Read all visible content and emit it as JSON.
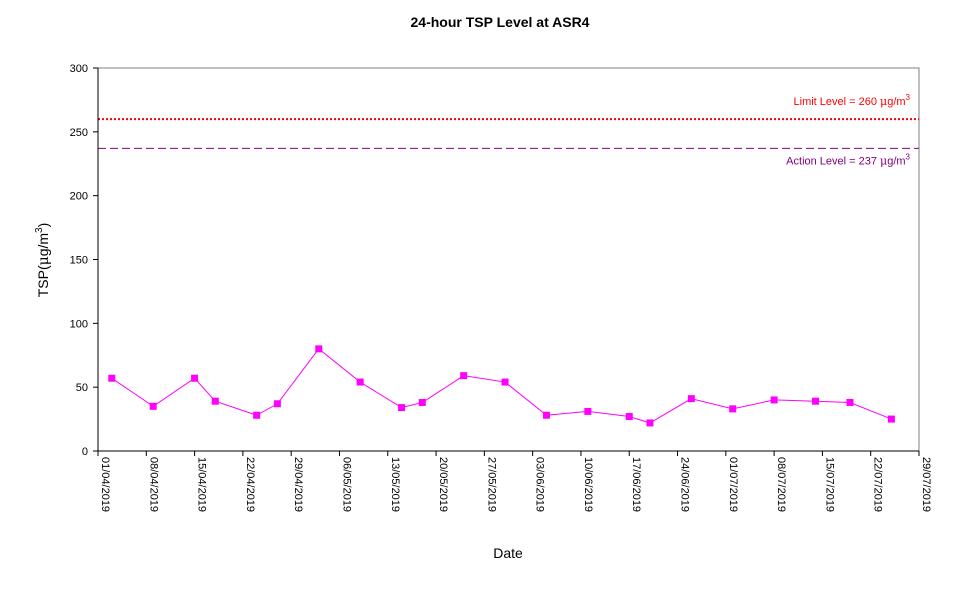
{
  "chart_data": {
    "type": "line",
    "title": "24-hour TSP Level at ASR4",
    "xlabel": "Date",
    "ylabel": "TSP(μg/m3)",
    "ylabel_parts": {
      "base": "TSP(",
      "mu": "μ",
      "unit": "g/m",
      "sup": "3",
      "close": ")"
    },
    "ylim": [
      0,
      300
    ],
    "yticks": [
      0,
      50,
      100,
      150,
      200,
      250,
      300
    ],
    "xlim": [
      "2019-04-01",
      "2019-07-29"
    ],
    "xticks": [
      "01/04/2019",
      "08/04/2019",
      "15/04/2019",
      "22/04/2019",
      "29/04/2019",
      "06/05/2019",
      "13/05/2019",
      "20/05/2019",
      "27/05/2019",
      "03/06/2019",
      "10/06/2019",
      "17/06/2019",
      "24/06/2019",
      "01/07/2019",
      "08/07/2019",
      "15/07/2019",
      "22/07/2019",
      "29/07/2019"
    ],
    "grid": false,
    "series": [
      {
        "color": "#ff00ff",
        "marker": "square",
        "x": [
          "2019-04-03",
          "2019-04-09",
          "2019-04-15",
          "2019-04-18",
          "2019-04-24",
          "2019-04-27",
          "2019-05-03",
          "2019-05-09",
          "2019-05-15",
          "2019-05-18",
          "2019-05-24",
          "2019-05-30",
          "2019-06-05",
          "2019-06-11",
          "2019-06-17",
          "2019-06-20",
          "2019-06-26",
          "2019-07-02",
          "2019-07-08",
          "2019-07-14",
          "2019-07-19",
          "2019-07-25"
        ],
        "values": [
          57,
          35,
          57,
          39,
          28,
          37,
          80,
          54,
          34,
          38,
          59,
          54,
          28,
          31,
          27,
          22,
          41,
          33,
          40,
          39,
          38,
          25
        ]
      }
    ],
    "reference_lines": [
      {
        "label": "Limit Level  = 260 μg/m3",
        "label_parts": {
          "text": "Limit Level  = 260 ",
          "mu": "μ",
          "unit": "g/m",
          "sup": "3"
        },
        "value": 260,
        "color": "#ff0000",
        "style": "dotted"
      },
      {
        "label": "Action Level  = 237 μg/m3",
        "label_parts": {
          "text": "Action Level  = 237 ",
          "mu": "μ",
          "unit": "g/m",
          "sup": "3"
        },
        "value": 237,
        "color": "#800080",
        "style": "dashed"
      }
    ]
  }
}
